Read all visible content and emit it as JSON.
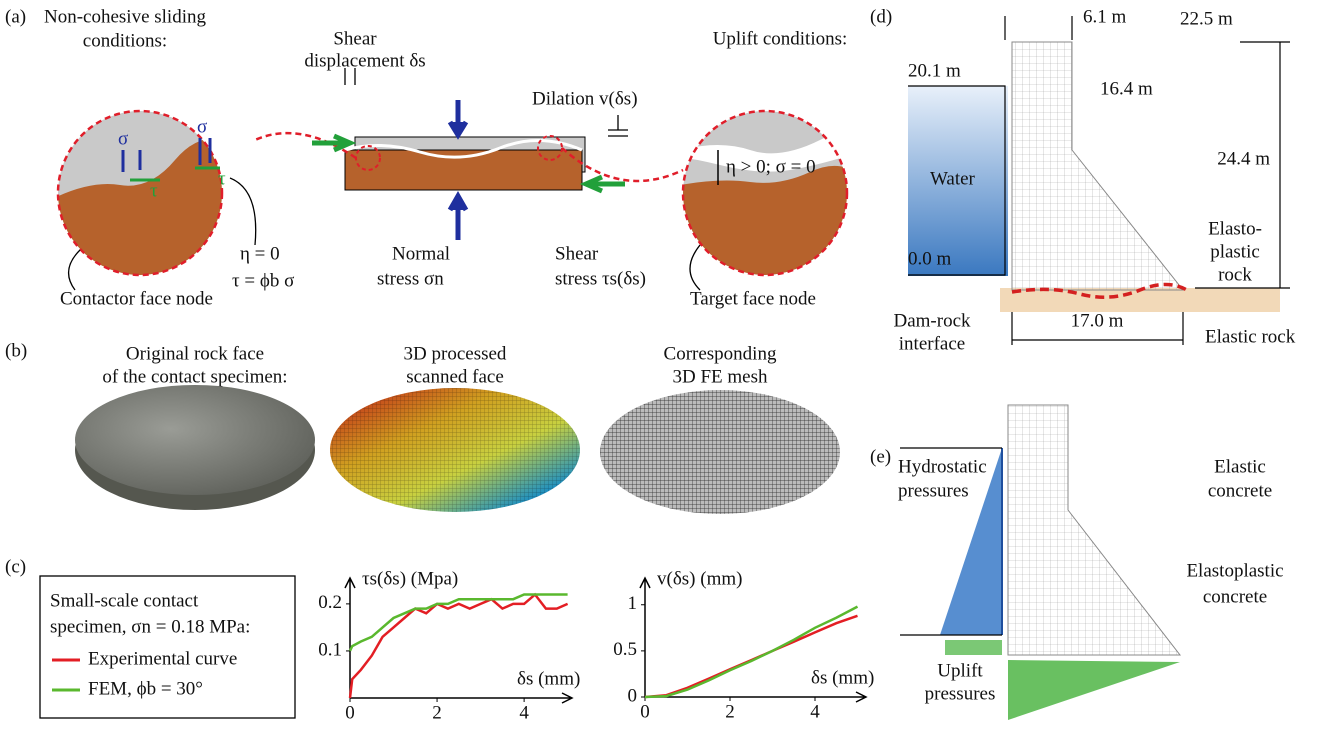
{
  "panel_labels": [
    "(a)",
    "(b)",
    "(c)",
    "(d)",
    "(e)"
  ],
  "a": {
    "left_title": [
      "Non-cohesive sliding",
      "conditions:"
    ],
    "sigma": "σ",
    "tau": "τ",
    "eta_zero": "η = 0",
    "friction_law": "τ = ϕb σ",
    "contactor": "Contactor face node",
    "shear_disp": [
      "Shear",
      "displacement δs"
    ],
    "dilation": "Dilation v(δs)",
    "normal_stress": [
      "Normal",
      "stress σn"
    ],
    "shear_stress": [
      "Shear",
      "stress τs(δs)"
    ],
    "right_title": "Uplift conditions:",
    "uplift_cond": "η > 0; σ = 0",
    "target": "Target face node"
  },
  "b": {
    "original": [
      "Original rock face",
      "of the contact specimen:"
    ],
    "processed": [
      "3D processed",
      "scanned face"
    ],
    "mesh": [
      "Corresponding",
      "3D FE mesh"
    ]
  },
  "c": {
    "legend_title": [
      "Small-scale contact",
      "specimen, σn = 0.18 MPa:"
    ],
    "charts": [
      {
        "type": "line",
        "ylabel": "τs(δs) (Mpa)",
        "xlabel": "δs (mm)",
        "x": [
          0,
          0.05,
          0.25,
          0.5,
          0.75,
          1,
          1.25,
          1.5,
          1.75,
          2,
          2.25,
          2.5,
          2.75,
          3,
          3.25,
          3.5,
          3.75,
          4,
          4.25,
          4.5,
          4.75,
          5
        ],
        "series": [
          {
            "name": "Experimental curve",
            "color": "#e31e24",
            "values": [
              0,
              0.04,
              0.06,
              0.09,
              0.13,
              0.15,
              0.17,
              0.19,
              0.18,
              0.2,
              0.19,
              0.2,
              0.19,
              0.2,
              0.21,
              0.19,
              0.2,
              0.2,
              0.22,
              0.19,
              0.19,
              0.2
            ]
          },
          {
            "name": "FEM, ϕb = 30°",
            "color": "#5ab82e",
            "values": [
              0.1,
              0.11,
              0.12,
              0.13,
              0.15,
              0.17,
              0.18,
              0.19,
              0.19,
              0.2,
              0.2,
              0.21,
              0.21,
              0.21,
              0.21,
              0.21,
              0.21,
              0.22,
              0.22,
              0.22,
              0.22,
              0.22
            ]
          }
        ],
        "xlim": [
          0,
          5.1
        ],
        "ylim": [
          0,
          0.255
        ],
        "xticks": [
          0,
          2,
          4
        ],
        "yticks": [
          0.1,
          0.2
        ]
      },
      {
        "type": "line",
        "ylabel": "v(δs) (mm)",
        "xlabel": "δs (mm)",
        "x": [
          0,
          0.5,
          1,
          1.5,
          2,
          2.5,
          3,
          3.5,
          4,
          4.5,
          5
        ],
        "series": [
          {
            "color": "#e31e24",
            "values": [
              0,
              0.02,
              0.1,
              0.2,
              0.3,
              0.4,
              0.5,
              0.6,
              0.7,
              0.8,
              0.88
            ]
          },
          {
            "color": "#5ab82e",
            "values": [
              0,
              0.01,
              0.08,
              0.18,
              0.29,
              0.39,
              0.5,
              0.62,
              0.75,
              0.86,
              0.98
            ]
          }
        ],
        "xlim": [
          0,
          5.2
        ],
        "ylim": [
          0,
          1.29
        ],
        "xticks": [
          0,
          2,
          4
        ],
        "yticks": [
          0,
          0.5,
          1
        ]
      }
    ]
  },
  "d": {
    "crest_width": "6.1 m",
    "crest_elev": "22.5 m",
    "water_level": "20.1 m",
    "slope_break": "16.4 m",
    "height": "24.4 m",
    "water": "Water",
    "base_level": "0.0 m",
    "elastoplastic_rock": [
      "Elasto-",
      "plastic",
      "rock"
    ],
    "interface": [
      "Dam-rock",
      "interface"
    ],
    "base_width": "17.0 m",
    "elastic_rock": "Elastic rock"
  },
  "e": {
    "hydrostatic": [
      "Hydrostatic",
      "pressures"
    ],
    "elastic_concrete": [
      "Elastic",
      "concrete"
    ],
    "elastoplastic_concrete": [
      "Elastoplastic",
      "concrete"
    ],
    "uplift": [
      "Uplift",
      "pressures"
    ]
  }
}
